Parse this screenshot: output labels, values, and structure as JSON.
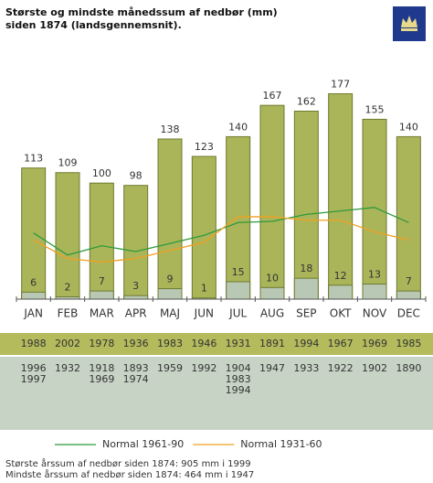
{
  "chart_data": {
    "type": "bar",
    "title": [
      "Største og mindste månedssum af nedbør (mm)",
      "siden 1874 (landsgennemsnit)."
    ],
    "categories": [
      "JAN",
      "FEB",
      "MAR",
      "APR",
      "MAJ",
      "JUN",
      "JUL",
      "AUG",
      "SEP",
      "OKT",
      "NOV",
      "DEC"
    ],
    "ylim": [
      0,
      190
    ],
    "series": [
      {
        "type": "bar",
        "color": "#aab55a",
        "values": [
          113,
          109,
          100,
          98,
          138,
          123,
          140,
          167,
          162,
          177,
          155,
          140
        ]
      },
      {
        "type": "bar",
        "color": "#b8c8b5",
        "values": [
          6,
          2,
          7,
          3,
          9,
          1,
          15,
          10,
          18,
          12,
          13,
          7
        ]
      },
      {
        "type": "line",
        "name": "Normal 1961-90",
        "color": "#2e9a3a",
        "values": [
          57,
          38,
          46,
          41,
          48,
          55,
          66,
          67,
          73,
          76,
          79,
          66
        ]
      },
      {
        "type": "line",
        "name": "Normal 1931-60",
        "color": "#f0a020",
        "values": [
          51,
          35,
          32,
          35,
          42,
          49,
          71,
          71,
          68,
          68,
          58,
          51
        ]
      }
    ],
    "max_years": [
      "1988",
      "2002",
      "1978",
      "1936",
      "1983",
      "1946",
      "1931",
      "1891",
      "1994",
      "1967",
      "1969",
      "1985"
    ],
    "min_years": [
      [
        "1996",
        "1997"
      ],
      [
        "1932"
      ],
      [
        "1918",
        "1969"
      ],
      [
        "1893",
        "1974"
      ],
      [
        "1959"
      ],
      [
        "1992"
      ],
      [
        "1904",
        "1983",
        "1994"
      ],
      [
        "1947"
      ],
      [
        "1933"
      ],
      [
        "1922"
      ],
      [
        "1902"
      ],
      [
        "1890"
      ]
    ],
    "notes": [
      "Største årssum af nedbør siden 1874: 905 mm i 1999",
      "Mindste årssum af nedbør siden 1874: 464 mm i 1947"
    ]
  }
}
